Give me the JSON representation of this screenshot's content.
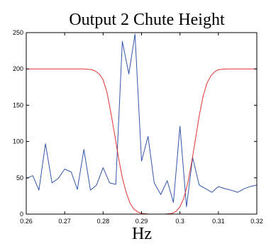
{
  "chart_data": {
    "type": "line",
    "title": "Output 2 Chute Height",
    "xlabel": "Hz",
    "ylabel": "",
    "xlim": [
      0.26,
      0.32
    ],
    "ylim": [
      0,
      250
    ],
    "xticks": [
      0.26,
      0.27,
      0.28,
      0.29,
      0.3,
      0.31,
      0.32
    ],
    "xtick_labels": [
      "0.26",
      "0.27",
      "0.28",
      "0.29",
      "0.3",
      "0.31",
      "0.32"
    ],
    "yticks": [
      0,
      50,
      100,
      150,
      200,
      250
    ],
    "ytick_labels": [
      "0",
      "50",
      "100",
      "150",
      "200",
      "250"
    ],
    "grid": false,
    "series": [
      {
        "color": "#3355aa",
        "x": [
          0.26,
          0.2617,
          0.2633,
          0.265,
          0.2667,
          0.2683,
          0.27,
          0.2717,
          0.2733,
          0.275,
          0.2767,
          0.2783,
          0.28,
          0.2817,
          0.2833,
          0.285,
          0.2867,
          0.2883,
          0.29,
          0.2917,
          0.2933,
          0.295,
          0.2967,
          0.2983,
          0.3,
          0.3017,
          0.3033,
          0.305,
          0.3067,
          0.3083,
          0.31,
          0.3117,
          0.3133,
          0.315,
          0.3167,
          0.3183,
          0.32
        ],
        "y": [
          49,
          53,
          33,
          97,
          43,
          49,
          62,
          58,
          34,
          89,
          33,
          40,
          64,
          43,
          41,
          238,
          193,
          248,
          73,
          107,
          43,
          27,
          46,
          16,
          121,
          10,
          78,
          40,
          35,
          30,
          38,
          35,
          33,
          30,
          35,
          38,
          40
        ]
      },
      {
        "color": "#dd3333",
        "x": [
          0.26,
          0.265,
          0.27,
          0.275,
          0.277,
          0.278,
          0.279,
          0.28,
          0.281,
          0.282,
          0.283,
          0.284,
          0.285,
          0.286,
          0.287,
          0.288,
          0.289,
          0.29,
          0.292,
          0.294,
          0.296,
          0.298,
          0.299,
          0.3,
          0.301,
          0.302,
          0.303,
          0.304,
          0.305,
          0.306,
          0.307,
          0.308,
          0.309,
          0.31,
          0.312,
          0.315,
          0.32
        ],
        "y": [
          200,
          200,
          200,
          200,
          199,
          197,
          193,
          185,
          168,
          140,
          110,
          78,
          50,
          30,
          15,
          7,
          3,
          1,
          0,
          0,
          0,
          1,
          4,
          10,
          22,
          42,
          70,
          102,
          135,
          162,
          180,
          190,
          196,
          199,
          200,
          200,
          200
        ]
      }
    ]
  }
}
